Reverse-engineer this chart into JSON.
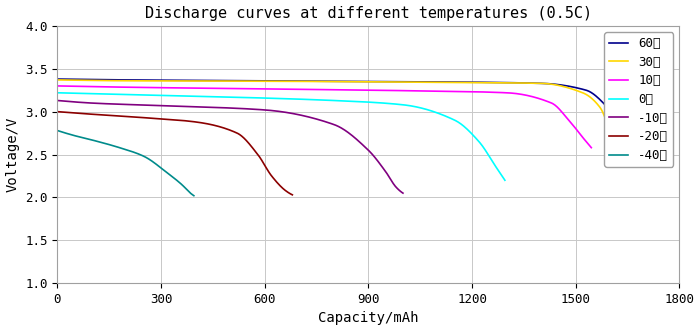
{
  "title": "Discharge curves at different temperatures (0.5C)",
  "xlabel": "Capacity/mAh",
  "ylabel": "Voltage/V",
  "xlim": [
    0,
    1800
  ],
  "ylim": [
    1.0,
    4.0
  ],
  "xticks": [
    0,
    300,
    600,
    900,
    1200,
    1500,
    1800
  ],
  "yticks": [
    1.0,
    1.5,
    2.0,
    2.5,
    3.0,
    3.5,
    4.0
  ],
  "curves": [
    {
      "label": "60℃",
      "color": "#00008B",
      "pts_x": [
        0,
        200,
        600,
        1000,
        1400,
        1530,
        1580,
        1620,
        1640
      ],
      "pts_y": [
        3.38,
        3.37,
        3.36,
        3.35,
        3.33,
        3.25,
        3.1,
        2.85,
        2.75
      ]
    },
    {
      "label": "30℃",
      "color": "#FFD700",
      "pts_x": [
        0,
        200,
        600,
        1000,
        1400,
        1520,
        1570,
        1600,
        1610
      ],
      "pts_y": [
        3.37,
        3.36,
        3.355,
        3.345,
        3.33,
        3.22,
        3.05,
        2.75,
        2.6
      ]
    },
    {
      "label": "10℃",
      "color": "#FF00FF",
      "pts_x": [
        0,
        200,
        600,
        1000,
        1300,
        1430,
        1480,
        1520,
        1545
      ],
      "pts_y": [
        3.3,
        3.285,
        3.265,
        3.245,
        3.22,
        3.1,
        2.9,
        2.7,
        2.58
      ]
    },
    {
      "label": "0℃",
      "color": "#00FFFF",
      "pts_x": [
        0,
        200,
        500,
        800,
        1000,
        1150,
        1220,
        1270,
        1295
      ],
      "pts_y": [
        3.22,
        3.2,
        3.17,
        3.13,
        3.08,
        2.9,
        2.65,
        2.35,
        2.2
      ]
    },
    {
      "label": "-10℃",
      "color": "#800080",
      "pts_x": [
        0,
        100,
        300,
        600,
        800,
        900,
        950,
        980,
        1000
      ],
      "pts_y": [
        3.13,
        3.1,
        3.07,
        3.02,
        2.85,
        2.55,
        2.3,
        2.12,
        2.05
      ]
    },
    {
      "label": "-20℃",
      "color": "#8B0000",
      "pts_x": [
        0,
        100,
        250,
        400,
        520,
        580,
        620,
        660,
        680
      ],
      "pts_y": [
        3.0,
        2.97,
        2.93,
        2.88,
        2.75,
        2.5,
        2.25,
        2.08,
        2.03
      ]
    },
    {
      "label": "-40℃",
      "color": "#008B8B",
      "pts_x": [
        0,
        50,
        100,
        180,
        250,
        320,
        360,
        385,
        395
      ],
      "pts_y": [
        2.78,
        2.72,
        2.67,
        2.58,
        2.48,
        2.28,
        2.15,
        2.05,
        2.02
      ]
    }
  ],
  "background_color": "#FFFFFF",
  "grid_color": "#C8C8C8",
  "title_fontsize": 11,
  "axis_fontsize": 10,
  "tick_fontsize": 9,
  "legend_fontsize": 9
}
